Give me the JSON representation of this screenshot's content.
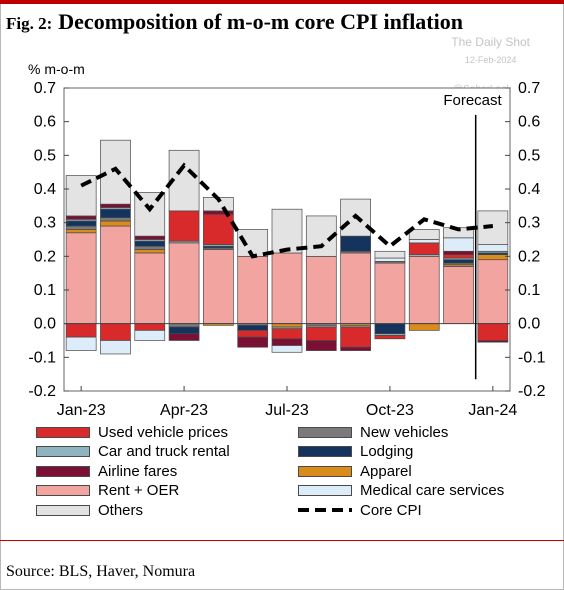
{
  "title_prefix": "Fig. 2:",
  "title": "Decomposition of m-o-m core CPI inflation",
  "watermark": {
    "line1": "The Daily Shot",
    "line2": "12-Feb-2024",
    "handle": "@SoberLook"
  },
  "source": "Source: BLS, Haver, Nomura",
  "colors": {
    "used_vehicle_prices": "#d82a2a",
    "new_vehicles": "#7a7a7a",
    "car_and_truck_rental": "#8db4bf",
    "lodging": "#14345e",
    "airline_fares": "#7c1034",
    "apparel": "#d98b1c",
    "rent_oer": "#f2a4a0",
    "medical_care_services": "#dcecf8",
    "others": "#e3e3e3",
    "core_cpi": "#000000"
  },
  "chart_data": {
    "type": "bar",
    "subtype": "stacked bar with line overlay",
    "y_unit": "% m-o-m",
    "ylim": [
      -0.2,
      0.7
    ],
    "y_ticks": [
      "0.7",
      "0.6",
      "0.5",
      "0.4",
      "0.3",
      "0.2",
      "0.1",
      "0.0",
      "-0.1",
      "-0.2"
    ],
    "y_tick_values": [
      0.7,
      0.6,
      0.5,
      0.4,
      0.3,
      0.2,
      0.1,
      0.0,
      -0.1,
      -0.2
    ],
    "categories": [
      "Jan-23",
      "Feb-23",
      "Mar-23",
      "Apr-23",
      "May-23",
      "Jun-23",
      "Jul-23",
      "Aug-23",
      "Sep-23",
      "Oct-23",
      "Nov-23",
      "Dec-23",
      "Jan-24"
    ],
    "x_tick_labels": [
      {
        "label": "Jan-23",
        "index": 0
      },
      {
        "label": "Apr-23",
        "index": 3
      },
      {
        "label": "Jul-23",
        "index": 6
      },
      {
        "label": "Oct-23",
        "index": 9
      },
      {
        "label": "Jan-24",
        "index": 12
      }
    ],
    "annotation": {
      "text": "Forecast",
      "after_index": 11.5
    },
    "grid": false,
    "legend_position": "bottom",
    "series": [
      {
        "key": "rent_oer",
        "name": "Rent + OER",
        "values": [
          0.27,
          0.29,
          0.21,
          0.24,
          0.22,
          0.2,
          0.21,
          0.2,
          0.21,
          0.18,
          0.2,
          0.17,
          0.19
        ]
      },
      {
        "key": "apparel",
        "name": "Apparel",
        "values": [
          0.01,
          0.015,
          0.01,
          0.0,
          -0.005,
          0.0,
          -0.01,
          0.0,
          -0.005,
          0.0,
          -0.02,
          0.005,
          0.015
        ]
      },
      {
        "key": "new_vehicles",
        "name": "New vehicles",
        "values": [
          0.01,
          0.01,
          0.01,
          -0.01,
          0.005,
          -0.005,
          0.0,
          -0.005,
          0.005,
          0.005,
          0.0,
          0.005,
          0.0
        ]
      },
      {
        "key": "lodging",
        "name": "Lodging",
        "values": [
          0.015,
          0.025,
          0.015,
          -0.02,
          0.005,
          -0.015,
          0.0,
          0.0,
          0.045,
          -0.03,
          0.0,
          0.01,
          0.005
        ]
      },
      {
        "key": "car_and_truck_rental",
        "name": "Car and truck rental",
        "values": [
          0.005,
          0.005,
          0.005,
          0.005,
          0.005,
          0.0,
          -0.005,
          -0.005,
          -0.005,
          -0.005,
          0.005,
          0.005,
          0.005
        ]
      },
      {
        "key": "used_vehicle_prices",
        "name": "Used vehicle prices",
        "values": [
          -0.04,
          -0.05,
          -0.02,
          0.09,
          0.09,
          -0.02,
          -0.03,
          -0.04,
          -0.06,
          -0.01,
          0.035,
          0.01,
          -0.05
        ]
      },
      {
        "key": "airline_fares",
        "name": "Airline fares",
        "values": [
          0.01,
          0.01,
          0.01,
          -0.02,
          0.01,
          -0.03,
          -0.02,
          -0.03,
          -0.01,
          0.0,
          0.0,
          0.01,
          -0.005
        ]
      },
      {
        "key": "medical_care_services",
        "name": "Medical care services",
        "values": [
          -0.04,
          -0.04,
          -0.03,
          0.0,
          0.0,
          0.0,
          -0.02,
          0.0,
          0.0,
          0.01,
          0.01,
          0.04,
          0.02
        ]
      },
      {
        "key": "others",
        "name": "Others",
        "values": [
          0.12,
          0.19,
          0.13,
          0.18,
          0.04,
          0.08,
          0.13,
          0.12,
          0.11,
          0.02,
          0.03,
          0.03,
          0.1
        ]
      }
    ],
    "line": {
      "key": "core_cpi",
      "name": "Core CPI",
      "values": [
        0.41,
        0.46,
        0.34,
        0.47,
        0.37,
        0.2,
        0.22,
        0.23,
        0.32,
        0.23,
        0.31,
        0.28,
        0.29
      ]
    }
  },
  "legend": [
    {
      "key": "used_vehicle_prices",
      "label": "Used vehicle prices"
    },
    {
      "key": "new_vehicles",
      "label": "New vehicles"
    },
    {
      "key": "car_and_truck_rental",
      "label": "Car and truck rental"
    },
    {
      "key": "lodging",
      "label": "Lodging"
    },
    {
      "key": "airline_fares",
      "label": "Airline fares"
    },
    {
      "key": "apparel",
      "label": "Apparel"
    },
    {
      "key": "rent_oer",
      "label": "Rent + OER"
    },
    {
      "key": "medical_care_services",
      "label": "Medical care services"
    },
    {
      "key": "others",
      "label": "Others"
    },
    {
      "key": "core_cpi",
      "label": "Core CPI"
    }
  ]
}
